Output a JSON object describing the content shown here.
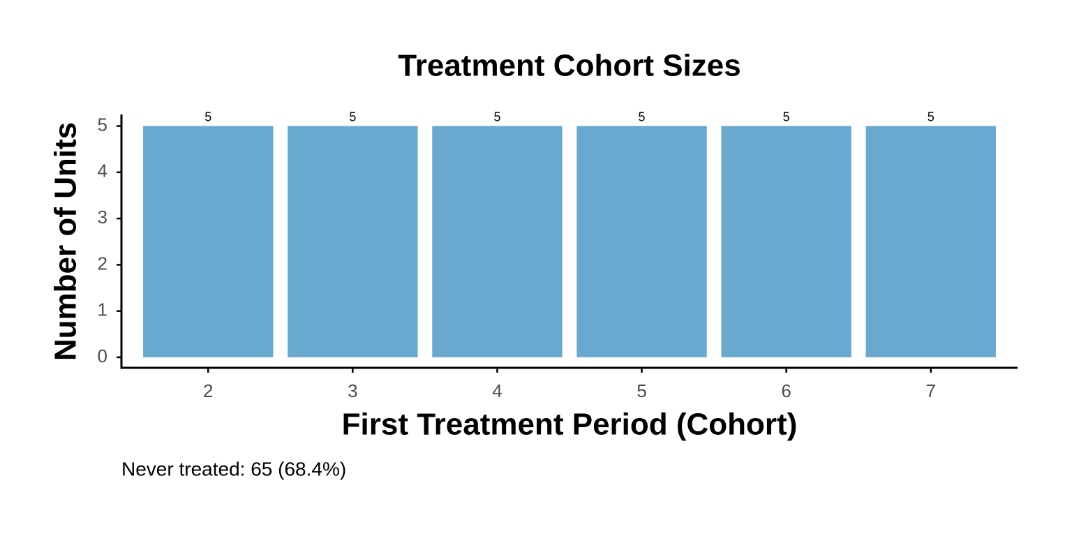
{
  "chart_data": {
    "type": "bar",
    "title": "Treatment Cohort Sizes",
    "x_label": "First Treatment Period (Cohort)",
    "y_label": "Number of Units",
    "caption": "Never treated: 65 (68.4%)",
    "categories": [
      "2",
      "3",
      "4",
      "5",
      "6",
      "7"
    ],
    "values": [
      5,
      5,
      5,
      5,
      5,
      5
    ],
    "color": "#69a9cf",
    "ylim": [
      -0.25,
      5.25
    ],
    "yticks": [
      0,
      1,
      2,
      3,
      4,
      5
    ],
    "grid": false
  }
}
